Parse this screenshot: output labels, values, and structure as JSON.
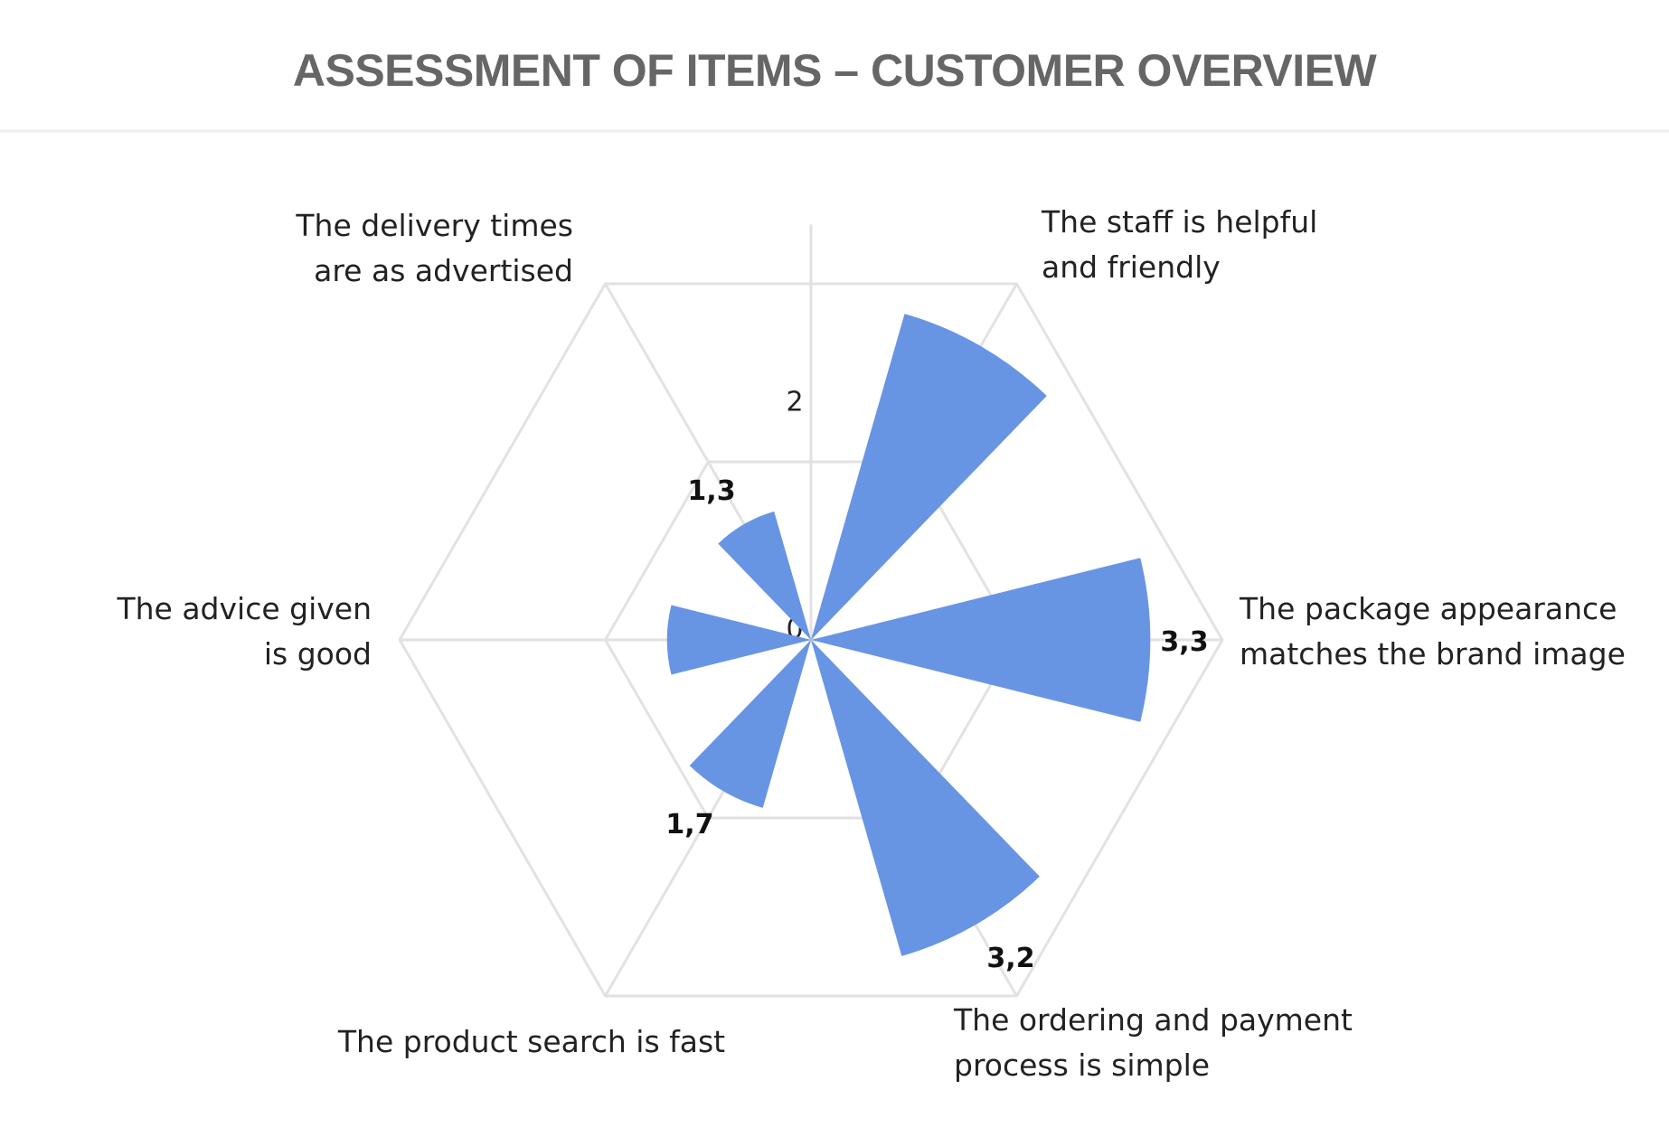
{
  "chart_data": {
    "type": "polar-area",
    "title": "ASSESSMENT OF ITEMS – CUSTOMER OVERVIEW",
    "categories": [
      {
        "lines": [
          "The staff is helpful",
          "and friendly"
        ],
        "value": 3.3
      },
      {
        "lines": [
          "The package appearance",
          "matches the brand image"
        ],
        "value": 3.3,
        "value_label": "3,3"
      },
      {
        "lines": [
          "The ordering and payment",
          "process is simple"
        ],
        "value": 3.2,
        "value_label": "3,2"
      },
      {
        "lines": [
          "The product search is fast"
        ],
        "value": 1.7,
        "value_label": "1,7"
      },
      {
        "lines": [
          "The advice given",
          "is good"
        ],
        "value": 1.4
      },
      {
        "lines": [
          "The delivery times",
          "are as advertised"
        ],
        "value": 1.3,
        "value_label": "1,3"
      }
    ],
    "radial_ticks": [
      "0",
      "2"
    ],
    "rlim": [
      0,
      4
    ],
    "grid": "hexagonal",
    "bar_color": "#6894e4",
    "grid_color": "#e2e2e2",
    "title_color": "#666666"
  }
}
